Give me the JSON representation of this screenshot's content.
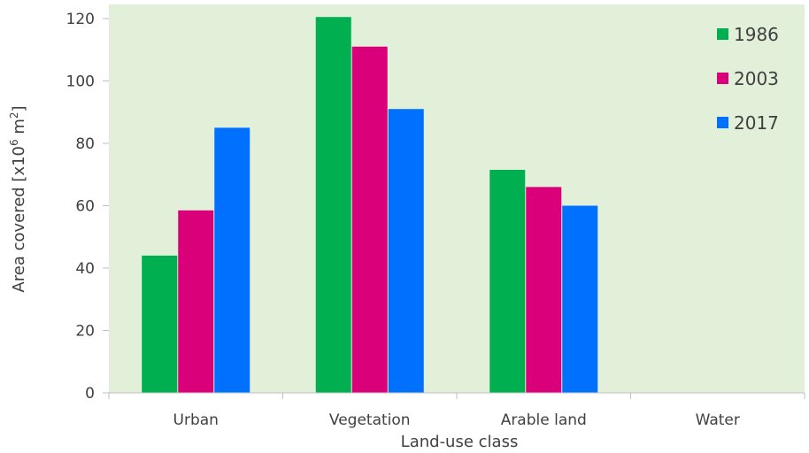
{
  "chart_data": {
    "type": "bar",
    "categories": [
      "Urban",
      "Vegetation",
      "Arable land",
      "Water"
    ],
    "series": [
      {
        "name": "1986",
        "values": [
          44,
          120.5,
          71.5,
          0
        ],
        "color": "#00b050"
      },
      {
        "name": "2003",
        "values": [
          58.5,
          111,
          66,
          0
        ],
        "color": "#d9007a"
      },
      {
        "name": "2017",
        "values": [
          85,
          91,
          60,
          0
        ],
        "color": "#0070ff"
      }
    ],
    "title": "",
    "xlabel": "Land-use class",
    "ylabel": "Area covered [x10",
    "ylabel_sup": "6",
    "ylabel_mid": " m",
    "ylabel_sup2": "2",
    "ylabel_end": "]",
    "ylim": [
      0,
      120
    ],
    "yticks": [
      "0",
      "20",
      "40",
      "60",
      "80",
      "100",
      "120"
    ],
    "plot_background": "#e2efd9",
    "grid": false,
    "legend_position": "top-right"
  }
}
